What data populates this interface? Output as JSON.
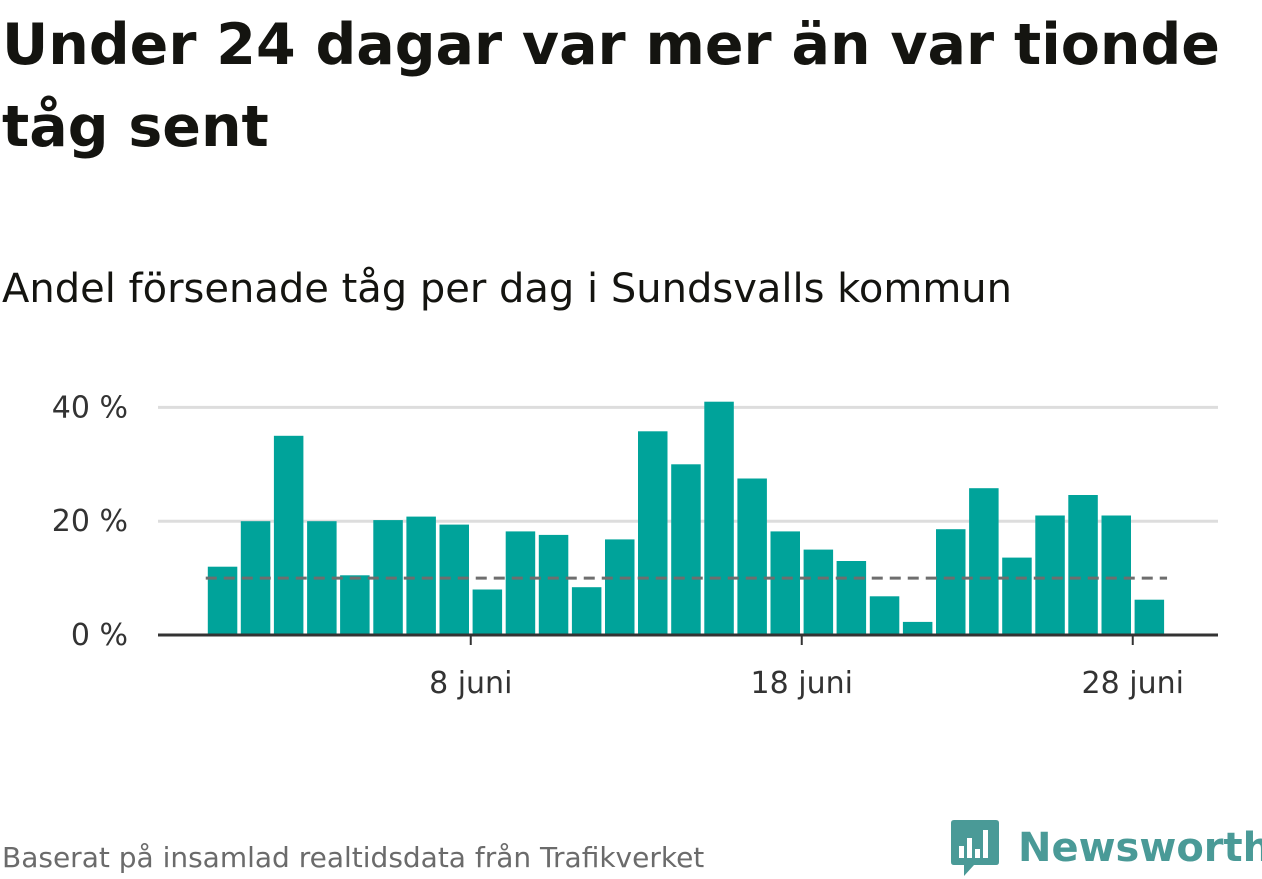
{
  "title": "Under 24 dagar var mer än var tionde tåg sent",
  "subtitle": "Andel försenade tåg per dag i Sundsvalls kommun",
  "caption": "Baserat på insamlad realtidsdata från Trafikverket",
  "brand": {
    "name": "Newsworthy",
    "icon": "newsworthy-logo-icon"
  },
  "colors": {
    "bar": "#00a39a",
    "grid": "#dddddd",
    "axis": "#333333",
    "reference_line": "#6e6e6e",
    "brand": "#4a9a97"
  },
  "chart_data": {
    "type": "bar",
    "x": [
      "2019-06-01",
      "2019-06-02",
      "2019-06-03",
      "2019-06-04",
      "2019-06-05",
      "2019-06-06",
      "2019-06-07",
      "2019-06-08",
      "2019-06-09",
      "2019-06-10",
      "2019-06-11",
      "2019-06-12",
      "2019-06-13",
      "2019-06-14",
      "2019-06-15",
      "2019-06-16",
      "2019-06-17",
      "2019-06-18",
      "2019-06-19",
      "2019-06-20",
      "2019-06-21",
      "2019-06-22",
      "2019-06-23",
      "2019-06-24",
      "2019-06-25",
      "2019-06-26",
      "2019-06-27",
      "2019-06-28",
      "2019-06-29"
    ],
    "values": [
      12,
      20,
      35,
      20,
      10.5,
      20.2,
      20.8,
      19.4,
      8,
      18.2,
      17.6,
      8.4,
      16.8,
      35.8,
      30,
      41,
      27.5,
      18.2,
      15,
      13,
      6.8,
      2.3,
      18.6,
      25.8,
      13.6,
      21,
      24.6,
      21,
      6.2
    ],
    "reference_line": {
      "value": 10
    },
    "xticks": [
      {
        "x": "2019-06-08",
        "label": "8 juni"
      },
      {
        "x": "2019-06-18",
        "label": "18 juni"
      },
      {
        "x": "2019-06-28",
        "label": "28 juni"
      }
    ],
    "yticks": [
      {
        "value": 0,
        "label": "0 %"
      },
      {
        "value": 20,
        "label": "20 %"
      },
      {
        "value": 40,
        "label": "40 %"
      }
    ],
    "ylim": [
      0,
      40
    ],
    "grid": true,
    "xlabel": "",
    "ylabel": ""
  }
}
